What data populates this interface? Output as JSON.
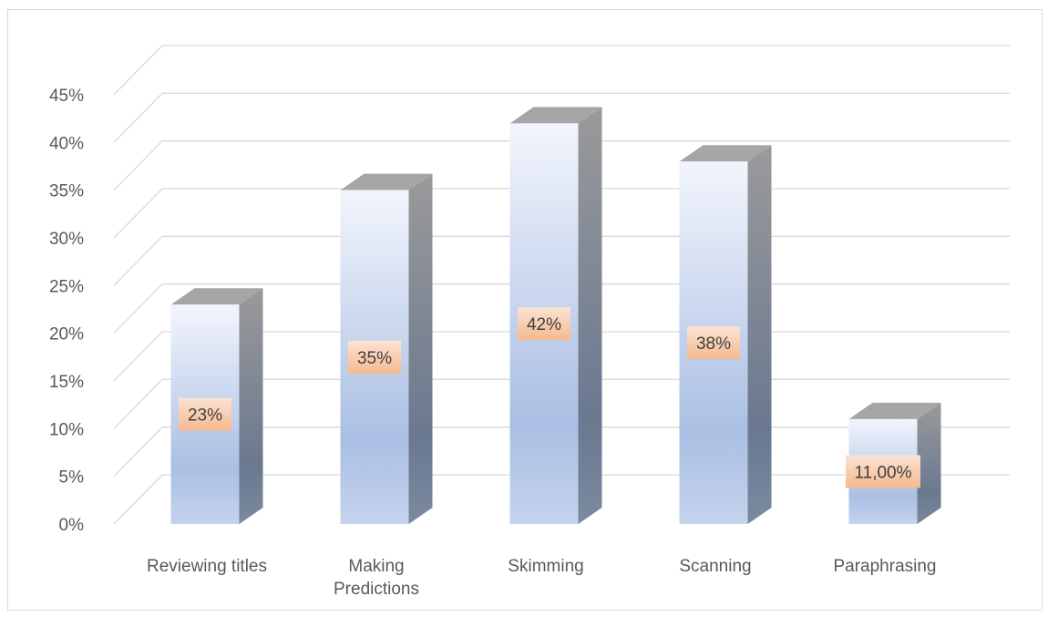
{
  "chart_data": {
    "type": "bar",
    "title": "",
    "xlabel": "",
    "ylabel": "",
    "categories": [
      "Reviewing titles",
      "Making Predictions",
      "Skimming",
      "Scanning",
      "Paraphrasing"
    ],
    "values": [
      23,
      35,
      42,
      38,
      11
    ],
    "data_labels": [
      "23%",
      "35%",
      "42%",
      "38%",
      "11,00%"
    ],
    "ylim": [
      0,
      45
    ],
    "yticks": [
      0,
      5,
      10,
      15,
      20,
      25,
      30,
      35,
      40,
      45
    ],
    "ytick_labels": [
      "0%",
      "5%",
      "10%",
      "15%",
      "20%",
      "25%",
      "30%",
      "35%",
      "40%",
      "45%"
    ],
    "grid": true,
    "legend": "none",
    "style": "3d-column",
    "colors": {
      "bar_front_top": "#f2f5fc",
      "bar_front_bottom": "#aabfe3",
      "bar_side": "#6e7a8f",
      "bar_top": "#a6a6a6",
      "label_bg": "#f7c9a8",
      "grid": "#d9d9d9"
    }
  }
}
